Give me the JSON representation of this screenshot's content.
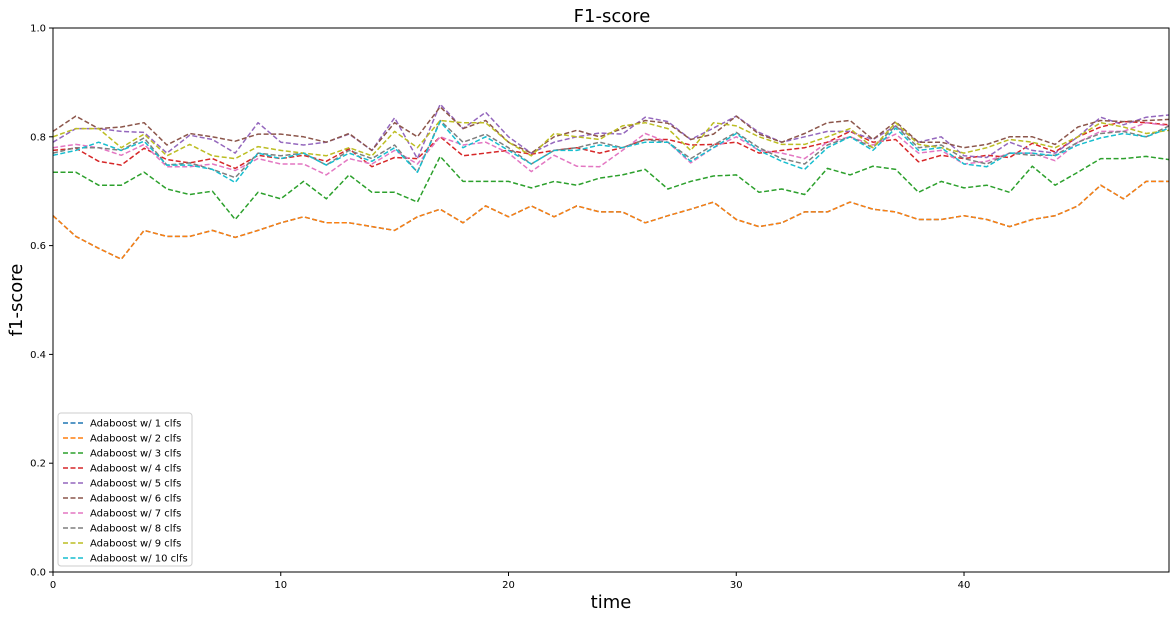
{
  "chart_data": {
    "type": "line",
    "title": "F1-score",
    "xlabel": "time",
    "ylabel": "f1-score",
    "xlim": [
      0,
      49
    ],
    "ylim": [
      0,
      1.0
    ],
    "x_ticks": [
      0,
      10,
      20,
      30,
      40
    ],
    "x_tick_labels": [
      "0",
      "10",
      "20",
      "30",
      "40"
    ],
    "y_ticks": [
      0.0,
      0.2,
      0.4,
      0.6,
      0.8,
      1.0
    ],
    "y_tick_labels": [
      "0.0",
      "0.2",
      "0.4",
      "0.6",
      "0.8",
      "1.0"
    ],
    "grid": false,
    "legend_position": "lower-left",
    "line_style": "dashed",
    "x": [
      0,
      1,
      2,
      3,
      4,
      5,
      6,
      7,
      8,
      9,
      10,
      11,
      12,
      13,
      14,
      15,
      16,
      17,
      18,
      19,
      20,
      21,
      22,
      23,
      24,
      25,
      26,
      27,
      28,
      29,
      30,
      31,
      32,
      33,
      34,
      35,
      36,
      37,
      38,
      39,
      40,
      41,
      42,
      43,
      44,
      45,
      46,
      47,
      48,
      49
    ],
    "series": [
      {
        "name": "Adaboost w/ 1 clfs",
        "color": "#1f77b4",
        "values": [
          0.655,
          0.617,
          0.595,
          0.575,
          0.628,
          0.617,
          0.617,
          0.628,
          0.615,
          0.628,
          0.642,
          0.653,
          0.642,
          0.642,
          0.635,
          0.628,
          0.653,
          0.667,
          0.642,
          0.673,
          0.653,
          0.673,
          0.653,
          0.673,
          0.662,
          0.662,
          0.642,
          0.655,
          0.667,
          0.68,
          0.648,
          0.635,
          0.642,
          0.662,
          0.662,
          0.68,
          0.667,
          0.662,
          0.648,
          0.648,
          0.655,
          0.648,
          0.635,
          0.648,
          0.655,
          0.673,
          0.711,
          0.686,
          0.718,
          0.718
        ]
      },
      {
        "name": "Adaboost w/ 2 clfs",
        "color": "#ff7f0e",
        "values": [
          0.655,
          0.617,
          0.595,
          0.575,
          0.628,
          0.617,
          0.617,
          0.628,
          0.615,
          0.628,
          0.642,
          0.653,
          0.642,
          0.642,
          0.635,
          0.628,
          0.653,
          0.667,
          0.642,
          0.673,
          0.653,
          0.673,
          0.653,
          0.673,
          0.662,
          0.662,
          0.642,
          0.655,
          0.667,
          0.68,
          0.648,
          0.635,
          0.642,
          0.662,
          0.662,
          0.68,
          0.667,
          0.662,
          0.648,
          0.648,
          0.655,
          0.648,
          0.635,
          0.648,
          0.655,
          0.673,
          0.711,
          0.686,
          0.718,
          0.718
        ]
      },
      {
        "name": "Adaboost w/ 3 clfs",
        "color": "#2ca02c",
        "values": [
          0.735,
          0.735,
          0.711,
          0.711,
          0.735,
          0.704,
          0.694,
          0.7,
          0.648,
          0.698,
          0.686,
          0.718,
          0.686,
          0.73,
          0.698,
          0.698,
          0.68,
          0.764,
          0.718,
          0.718,
          0.718,
          0.706,
          0.718,
          0.711,
          0.724,
          0.73,
          0.74,
          0.704,
          0.718,
          0.728,
          0.73,
          0.698,
          0.704,
          0.694,
          0.742,
          0.73,
          0.746,
          0.74,
          0.698,
          0.718,
          0.706,
          0.711,
          0.698,
          0.746,
          0.711,
          0.735,
          0.76,
          0.76,
          0.764,
          0.758
        ]
      },
      {
        "name": "Adaboost w/ 4 clfs",
        "color": "#d62728",
        "values": [
          0.775,
          0.779,
          0.755,
          0.748,
          0.779,
          0.758,
          0.752,
          0.76,
          0.742,
          0.766,
          0.76,
          0.766,
          0.755,
          0.778,
          0.745,
          0.762,
          0.76,
          0.8,
          0.765,
          0.77,
          0.775,
          0.768,
          0.775,
          0.78,
          0.77,
          0.78,
          0.795,
          0.795,
          0.785,
          0.786,
          0.79,
          0.77,
          0.775,
          0.78,
          0.79,
          0.81,
          0.79,
          0.795,
          0.754,
          0.766,
          0.76,
          0.766,
          0.762,
          0.788,
          0.772,
          0.8,
          0.818,
          0.828,
          0.826,
          0.822
        ]
      },
      {
        "name": "Adaboost w/ 5 clfs",
        "color": "#9467bd",
        "values": [
          0.79,
          0.815,
          0.815,
          0.81,
          0.808,
          0.77,
          0.803,
          0.795,
          0.77,
          0.826,
          0.79,
          0.785,
          0.79,
          0.805,
          0.775,
          0.835,
          0.76,
          0.86,
          0.815,
          0.845,
          0.8,
          0.77,
          0.79,
          0.8,
          0.807,
          0.805,
          0.836,
          0.828,
          0.795,
          0.816,
          0.838,
          0.808,
          0.79,
          0.8,
          0.81,
          0.81,
          0.795,
          0.82,
          0.79,
          0.8,
          0.765,
          0.762,
          0.79,
          0.775,
          0.77,
          0.8,
          0.836,
          0.822,
          0.836,
          0.84
        ]
      },
      {
        "name": "Adaboost w/ 6 clfs",
        "color": "#8c564b",
        "values": [
          0.81,
          0.838,
          0.815,
          0.818,
          0.826,
          0.785,
          0.806,
          0.8,
          0.792,
          0.805,
          0.805,
          0.8,
          0.79,
          0.806,
          0.775,
          0.826,
          0.8,
          0.855,
          0.815,
          0.83,
          0.79,
          0.77,
          0.8,
          0.812,
          0.8,
          0.815,
          0.83,
          0.825,
          0.795,
          0.805,
          0.838,
          0.805,
          0.79,
          0.806,
          0.826,
          0.83,
          0.795,
          0.828,
          0.79,
          0.79,
          0.78,
          0.786,
          0.8,
          0.8,
          0.786,
          0.818,
          0.83,
          0.828,
          0.83,
          0.832
        ]
      },
      {
        "name": "Adaboost w/ 7 clfs",
        "color": "#e377c2",
        "values": [
          0.78,
          0.786,
          0.78,
          0.766,
          0.786,
          0.745,
          0.745,
          0.75,
          0.738,
          0.76,
          0.75,
          0.75,
          0.73,
          0.76,
          0.75,
          0.775,
          0.75,
          0.8,
          0.785,
          0.79,
          0.77,
          0.736,
          0.766,
          0.746,
          0.745,
          0.775,
          0.806,
          0.79,
          0.752,
          0.78,
          0.8,
          0.775,
          0.77,
          0.76,
          0.79,
          0.8,
          0.785,
          0.805,
          0.77,
          0.775,
          0.75,
          0.755,
          0.77,
          0.77,
          0.756,
          0.79,
          0.81,
          0.81,
          0.826,
          0.82
        ]
      },
      {
        "name": "Adaboost w/ 8 clfs",
        "color": "#7f7f7f",
        "values": [
          0.77,
          0.78,
          0.78,
          0.775,
          0.798,
          0.748,
          0.752,
          0.74,
          0.725,
          0.77,
          0.765,
          0.77,
          0.748,
          0.775,
          0.76,
          0.785,
          0.735,
          0.83,
          0.79,
          0.805,
          0.78,
          0.75,
          0.775,
          0.78,
          0.79,
          0.78,
          0.795,
          0.79,
          0.76,
          0.785,
          0.808,
          0.78,
          0.76,
          0.75,
          0.785,
          0.8,
          0.78,
          0.82,
          0.78,
          0.785,
          0.76,
          0.75,
          0.77,
          0.766,
          0.766,
          0.79,
          0.806,
          0.81,
          0.8,
          0.82
        ]
      },
      {
        "name": "Adaboost w/ 9 clfs",
        "color": "#bcbd22",
        "values": [
          0.8,
          0.815,
          0.815,
          0.78,
          0.805,
          0.765,
          0.786,
          0.765,
          0.76,
          0.782,
          0.775,
          0.77,
          0.765,
          0.78,
          0.765,
          0.81,
          0.78,
          0.83,
          0.826,
          0.826,
          0.79,
          0.765,
          0.806,
          0.8,
          0.795,
          0.82,
          0.826,
          0.815,
          0.775,
          0.826,
          0.82,
          0.8,
          0.786,
          0.786,
          0.8,
          0.815,
          0.78,
          0.826,
          0.786,
          0.78,
          0.77,
          0.78,
          0.795,
          0.79,
          0.78,
          0.8,
          0.826,
          0.818,
          0.806,
          0.812
        ]
      },
      {
        "name": "Adaboost w/ 10 clfs",
        "color": "#17becf",
        "values": [
          0.766,
          0.775,
          0.79,
          0.775,
          0.792,
          0.748,
          0.748,
          0.74,
          0.716,
          0.77,
          0.76,
          0.77,
          0.748,
          0.77,
          0.755,
          0.78,
          0.735,
          0.828,
          0.78,
          0.8,
          0.775,
          0.75,
          0.775,
          0.775,
          0.785,
          0.78,
          0.79,
          0.79,
          0.755,
          0.78,
          0.806,
          0.775,
          0.755,
          0.74,
          0.78,
          0.8,
          0.775,
          0.816,
          0.775,
          0.78,
          0.75,
          0.745,
          0.77,
          0.77,
          0.765,
          0.785,
          0.798,
          0.806,
          0.8,
          0.816
        ]
      }
    ]
  }
}
